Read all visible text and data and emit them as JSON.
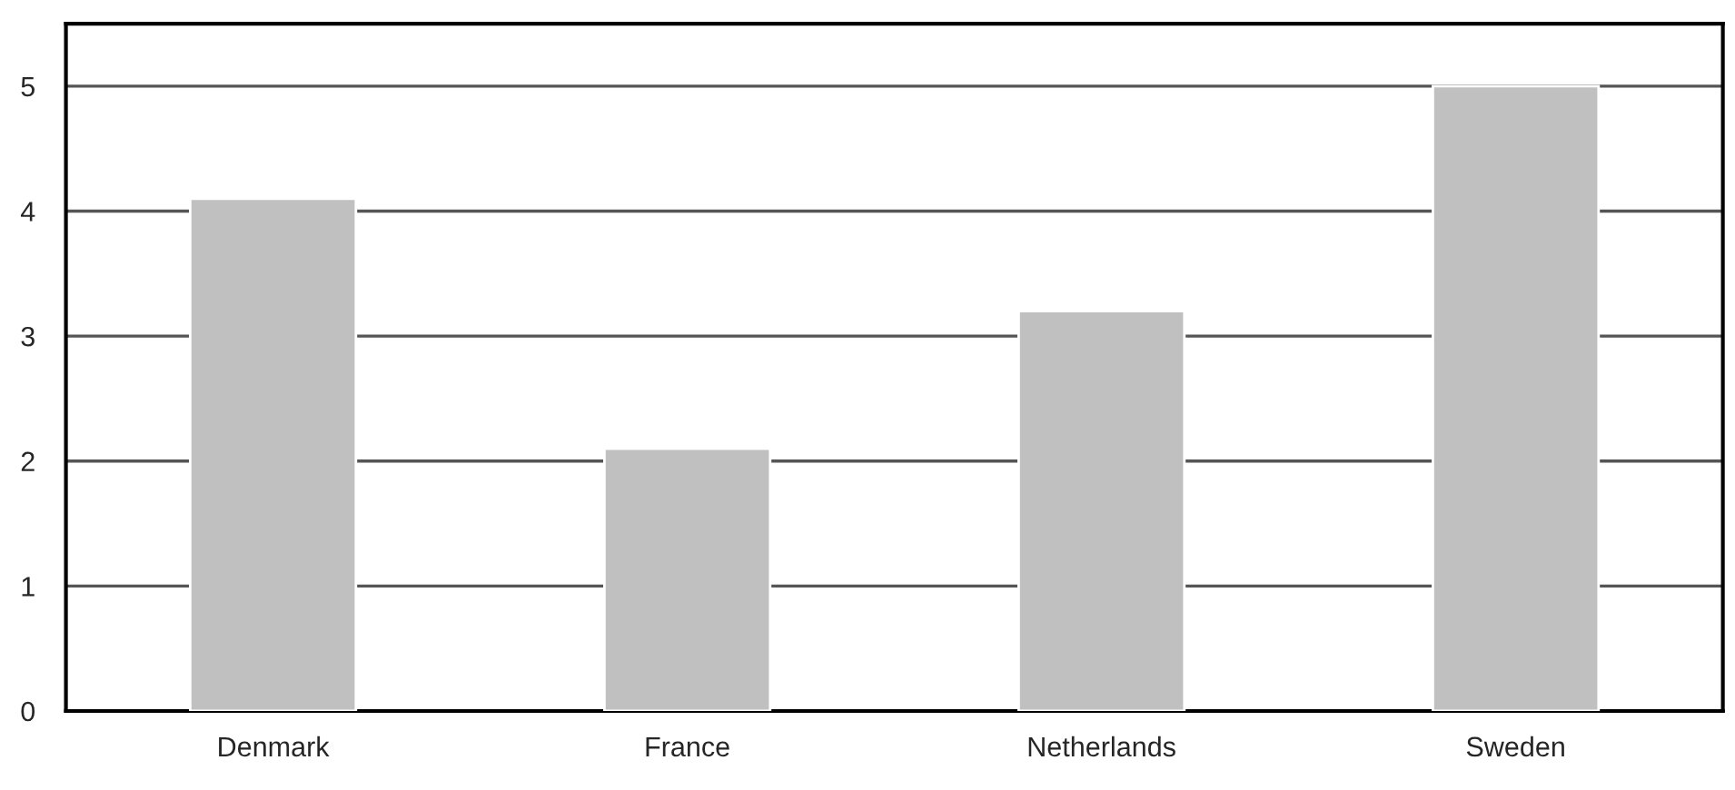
{
  "chart_data": {
    "type": "bar",
    "categories": [
      "Denmark",
      "France",
      "Netherlands",
      "Sweden"
    ],
    "values": [
      4.1,
      2.1,
      3.2,
      5.0
    ],
    "color": "#c0c0c0",
    "ylim": [
      0,
      5.5
    ],
    "yticks": [
      0,
      1,
      2,
      3,
      4,
      5
    ],
    "grid": "y"
  }
}
